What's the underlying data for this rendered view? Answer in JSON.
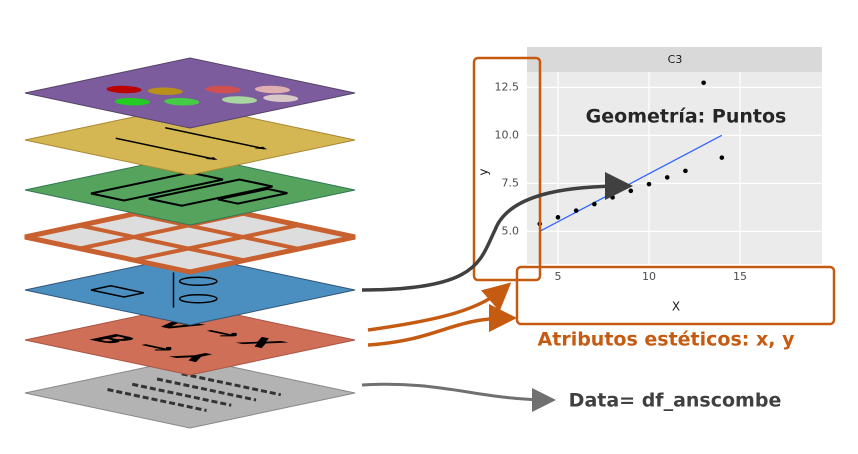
{
  "chart_data": {
    "type": "scatter",
    "title": "C3",
    "x_label": "X",
    "y_label": "y",
    "x": [
      10,
      8,
      13,
      9,
      11,
      14,
      6,
      4,
      12,
      7,
      5
    ],
    "y": [
      7.46,
      6.77,
      12.74,
      7.11,
      7.81,
      8.84,
      6.08,
      5.39,
      8.15,
      6.42,
      5.73
    ],
    "color": "#000000",
    "fit": {
      "x": [
        4,
        14
      ],
      "y": [
        5,
        10
      ],
      "color": "#3366ff"
    },
    "xlim": [
      3.3,
      19.5
    ],
    "ylim": [
      3.3,
      13.3
    ],
    "xticks": [
      5,
      10,
      15
    ],
    "yticks": [
      {
        "value": 5,
        "label": "5.0"
      },
      {
        "value": 7.5,
        "label": "7.5"
      },
      {
        "value": 10,
        "label": "10.0"
      },
      {
        "value": 12.5,
        "label": "12.5"
      }
    ],
    "grid": true
  },
  "annotations": {
    "geometry": "Geometría: Puntos",
    "aesthetics": "Atributos estéticos: x, y",
    "data": "Data= df_anscombe"
  },
  "layers": {
    "aesthetics_texts": [
      "A → X",
      "B → Y"
    ]
  }
}
